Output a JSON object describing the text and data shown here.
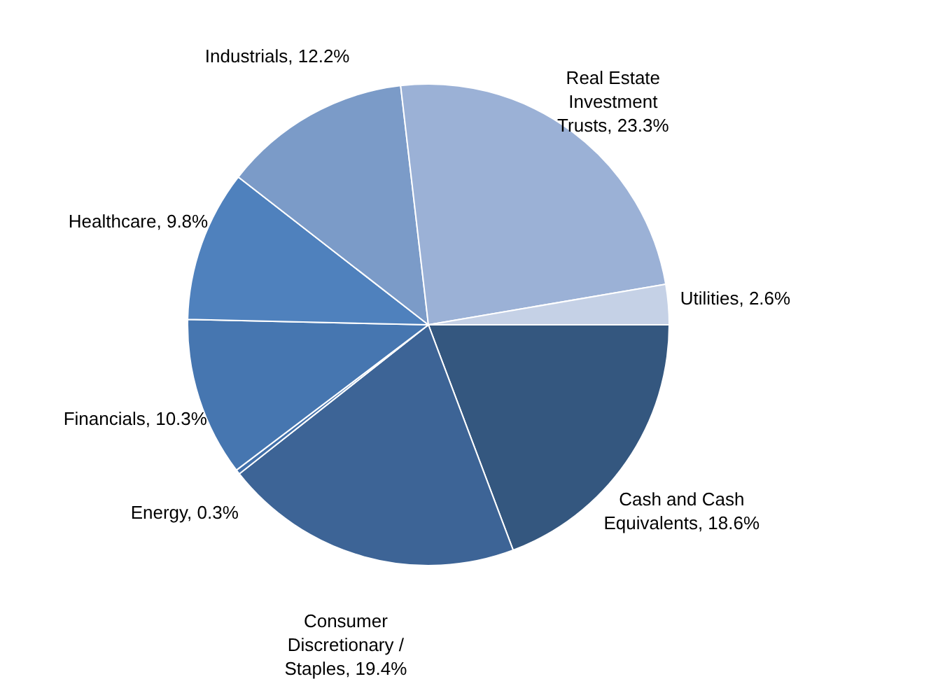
{
  "chart_data": {
    "type": "pie",
    "categories": [
      "Cash and Cash Equivalents",
      "Consumer Discretionary / Staples",
      "Energy",
      "Financials",
      "Healthcare",
      "Industrials",
      "Real Estate Investment Trusts",
      "Utilities"
    ],
    "values": [
      18.6,
      19.4,
      0.3,
      10.3,
      9.8,
      12.2,
      23.3,
      2.6
    ],
    "value_labels": [
      "18.6%",
      "19.4%",
      "0.3%",
      "10.3%",
      "9.8%",
      "12.2%",
      "23.3%",
      "2.6%"
    ],
    "colors": [
      "#34577f",
      "#3d6496",
      "#4270aa",
      "#4676b0",
      "#4f81bd",
      "#7b9bc8",
      "#9bb1d6",
      "#c5d1e6"
    ],
    "legend": false
  }
}
